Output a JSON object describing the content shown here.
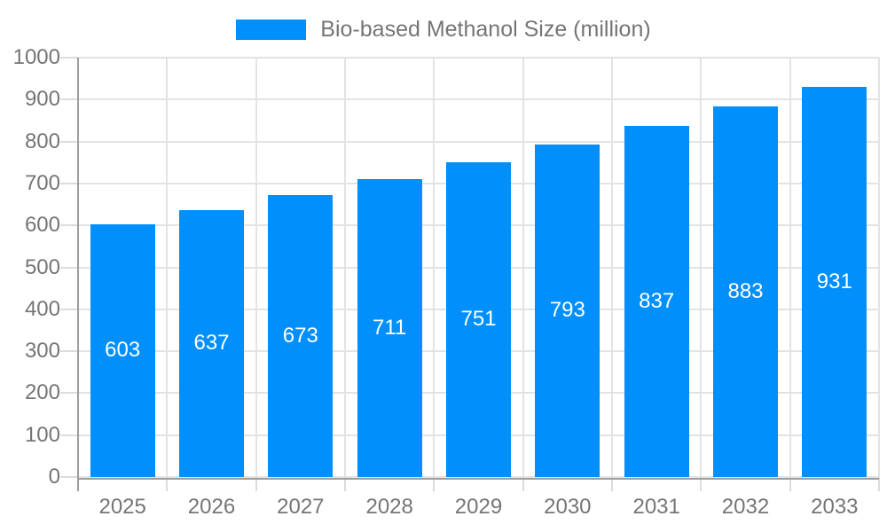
{
  "legend": {
    "label": "Bio-based Methanol Size (million)",
    "swatch_color": "#008FFB"
  },
  "chart_data": {
    "type": "bar",
    "title": "Bio-based Methanol Size (million)",
    "categories": [
      "2025",
      "2026",
      "2027",
      "2028",
      "2029",
      "2030",
      "2031",
      "2032",
      "2033"
    ],
    "values": [
      603,
      637,
      673,
      711,
      751,
      793,
      837,
      883,
      931
    ],
    "yticks": [
      0,
      100,
      200,
      300,
      400,
      500,
      600,
      700,
      800,
      900,
      1000
    ],
    "ylim": [
      0,
      1000
    ],
    "xlabel": "",
    "ylabel": "",
    "grid": true,
    "legend_position": "top",
    "colors": {
      "bar": "#008FFB",
      "bar_label": "#ffffff",
      "axis_text": "#757575",
      "grid_line": "#e3e3e3",
      "tick_line": "#dcdcdc",
      "axis_line": "#9e9e9e"
    }
  }
}
